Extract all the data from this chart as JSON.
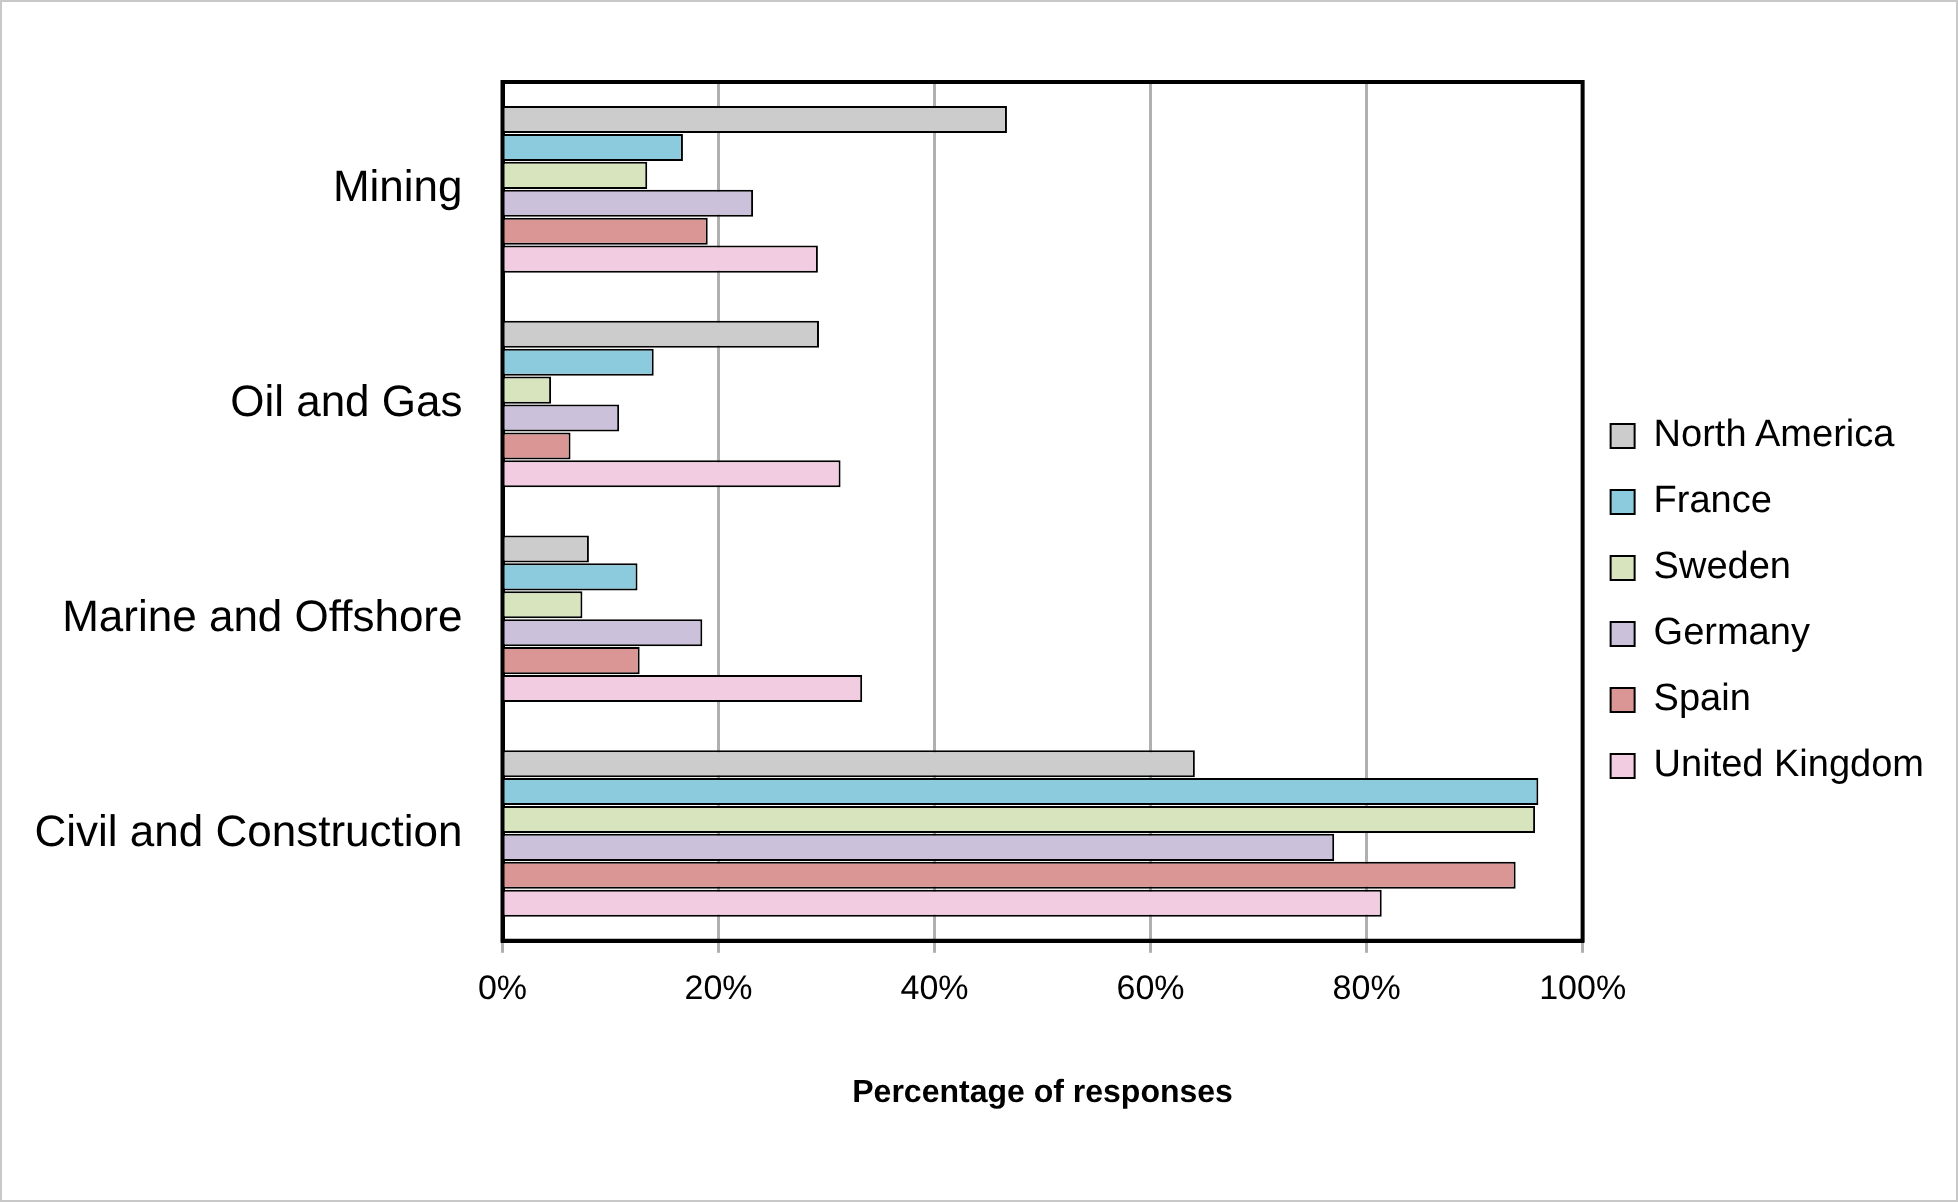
{
  "chart_data": {
    "type": "bar",
    "orientation": "horizontal",
    "xlabel": "Percentage of responses",
    "categories": [
      "Mining",
      "Oil and Gas",
      "Marine and Offshore",
      "Civil and Construction"
    ],
    "series": [
      {
        "name": "North America",
        "color": "#cccccc",
        "values": [
          46.7,
          29.3,
          8.0,
          64.1
        ]
      },
      {
        "name": "France",
        "color": "#8ccbdd",
        "values": [
          16.7,
          14.0,
          12.5,
          95.9
        ]
      },
      {
        "name": "Sweden",
        "color": "#d7e4bd",
        "values": [
          13.4,
          4.5,
          7.4,
          95.6
        ]
      },
      {
        "name": "Germany",
        "color": "#ccc1da",
        "values": [
          23.2,
          10.8,
          18.5,
          77.0
        ]
      },
      {
        "name": "Spain",
        "color": "#d99694",
        "values": [
          19.0,
          6.3,
          12.7,
          93.8
        ]
      },
      {
        "name": "United Kingdom",
        "color": "#f2cce0",
        "values": [
          29.2,
          31.3,
          33.3,
          81.4
        ]
      }
    ],
    "xlim": [
      0,
      100
    ],
    "xticks": [
      {
        "value": 0,
        "label": "0%"
      },
      {
        "value": 20,
        "label": "20%"
      },
      {
        "value": 40,
        "label": "40%"
      },
      {
        "value": 60,
        "label": "60%"
      },
      {
        "value": 80,
        "label": "80%"
      },
      {
        "value": 100,
        "label": "100%"
      }
    ],
    "grid": "x",
    "legend": "right"
  }
}
